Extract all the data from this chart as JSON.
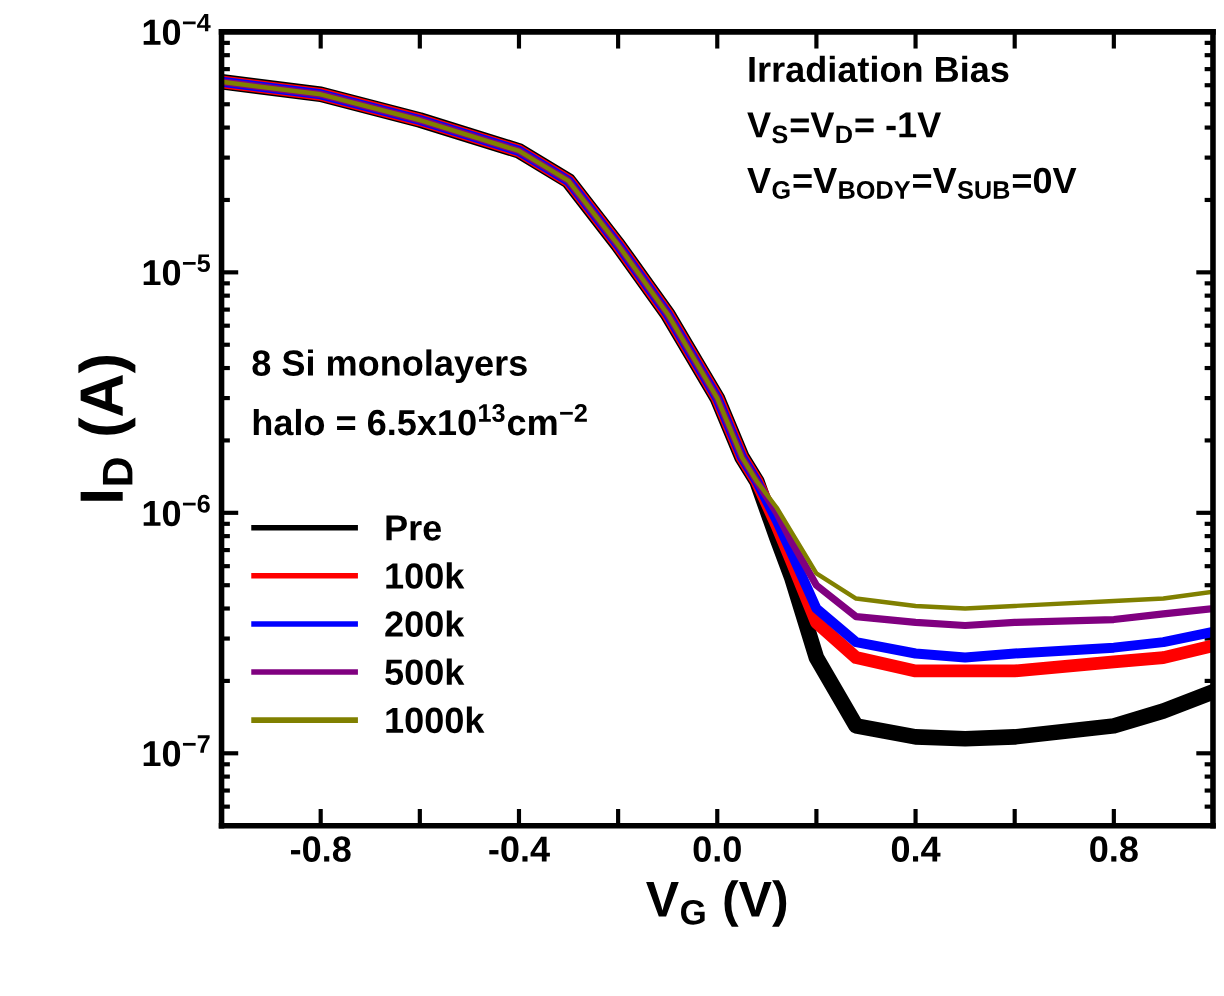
{
  "chart_data": {
    "type": "line",
    "xlabel": "V$_{G}$ (V)",
    "ylabel": "I$_{D}$ (A)",
    "log": "y",
    "legend": "left",
    "grid": false,
    "x": [
      -1,
      -0.8,
      -0.6,
      -0.4,
      -0.3,
      -0.2,
      -0.1,
      0,
      0.05,
      0.08,
      0.12,
      0.15,
      0.2,
      0.28,
      0.4,
      0.5,
      0.6,
      0.8,
      0.9,
      1.0
    ],
    "xlim": [
      -1,
      1
    ],
    "xticks": [
      {
        "value": -0.8,
        "label": "-0.8"
      },
      {
        "value": -0.6,
        "label": null
      },
      {
        "value": -0.4,
        "label": "-0.4"
      },
      {
        "value": -0.2,
        "label": null
      },
      {
        "value": 0.0,
        "label": "0.0"
      },
      {
        "value": 0.2,
        "label": null
      },
      {
        "value": 0.4,
        "label": "0.4"
      },
      {
        "value": 0.6,
        "label": null
      },
      {
        "value": 0.8,
        "label": "0.8"
      }
    ],
    "ylim": [
      5e-08,
      0.0001
    ],
    "yticks": [
      {
        "value": 1e-07,
        "label": "10$^{−7}$"
      },
      {
        "value": 1e-06,
        "label": "10$^{−6}$"
      },
      {
        "value": 1e-05,
        "label": "10$^{−5}$"
      },
      {
        "value": 0.0001,
        "label": "10$^{−4}$"
      }
    ],
    "series": [
      {
        "name": "Pre",
        "color": "#000000",
        "values": [
          6.2e-05,
          5.5e-05,
          4.3e-05,
          3.2e-05,
          2.4e-05,
          1.3e-05,
          6.7e-06,
          3e-06,
          1.7e-06,
          1.35e-06,
          7.9e-07,
          5.4e-07,
          2.5e-07,
          1.3e-07,
          1.17e-07,
          1.15e-07,
          1.17e-07,
          1.3e-07,
          1.5e-07,
          1.8e-07
        ]
      },
      {
        "name": "100k",
        "color": "#ff0000",
        "values": [
          6.2e-05,
          5.5e-05,
          4.3e-05,
          3.2e-05,
          2.4e-05,
          1.3e-05,
          6.7e-06,
          3e-06,
          1.7e-06,
          1.35e-06,
          8.9e-07,
          6.3e-07,
          3.5e-07,
          2.5e-07,
          2.2e-07,
          2.2e-07,
          2.2e-07,
          2.4e-07,
          2.5e-07,
          2.8e-07
        ]
      },
      {
        "name": "200k",
        "color": "#0000ff",
        "values": [
          6.2e-05,
          5.5e-05,
          4.3e-05,
          3.2e-05,
          2.4e-05,
          1.3e-05,
          6.7e-06,
          3e-06,
          1.7e-06,
          1.35e-06,
          9.3e-07,
          6.8e-07,
          4e-07,
          2.9e-07,
          2.6e-07,
          2.5e-07,
          2.6e-07,
          2.75e-07,
          2.9e-07,
          3.2e-07
        ]
      },
      {
        "name": "500k",
        "color": "#800080",
        "values": [
          6.2e-05,
          5.5e-05,
          4.3e-05,
          3.2e-05,
          2.4e-05,
          1.3e-05,
          6.7e-06,
          3e-06,
          1.7e-06,
          1.35e-06,
          1e-06,
          7.6e-07,
          5e-07,
          3.7e-07,
          3.5e-07,
          3.4e-07,
          3.5e-07,
          3.6e-07,
          3.8e-07,
          4e-07
        ]
      },
      {
        "name": "1000k",
        "color": "#808000",
        "values": [
          6.2e-05,
          5.5e-05,
          4.3e-05,
          3.2e-05,
          2.4e-05,
          1.3e-05,
          6.7e-06,
          3e-06,
          1.7e-06,
          1.35e-06,
          1.05e-06,
          8.3e-07,
          5.6e-07,
          4.4e-07,
          4.1e-07,
          4e-07,
          4.1e-07,
          4.3e-07,
          4.4e-07,
          4.7e-07
        ]
      }
    ],
    "annotations": [
      "Irradiation Bias",
      "V$_{S}$=V$_{D}$= -1V",
      "V$_{G}$=V$_{BODY}$=V$_{SUB}$=0V",
      "8 Si monolayers",
      "halo = 6.5x10$^{13}$cm$^{−2}$"
    ]
  }
}
